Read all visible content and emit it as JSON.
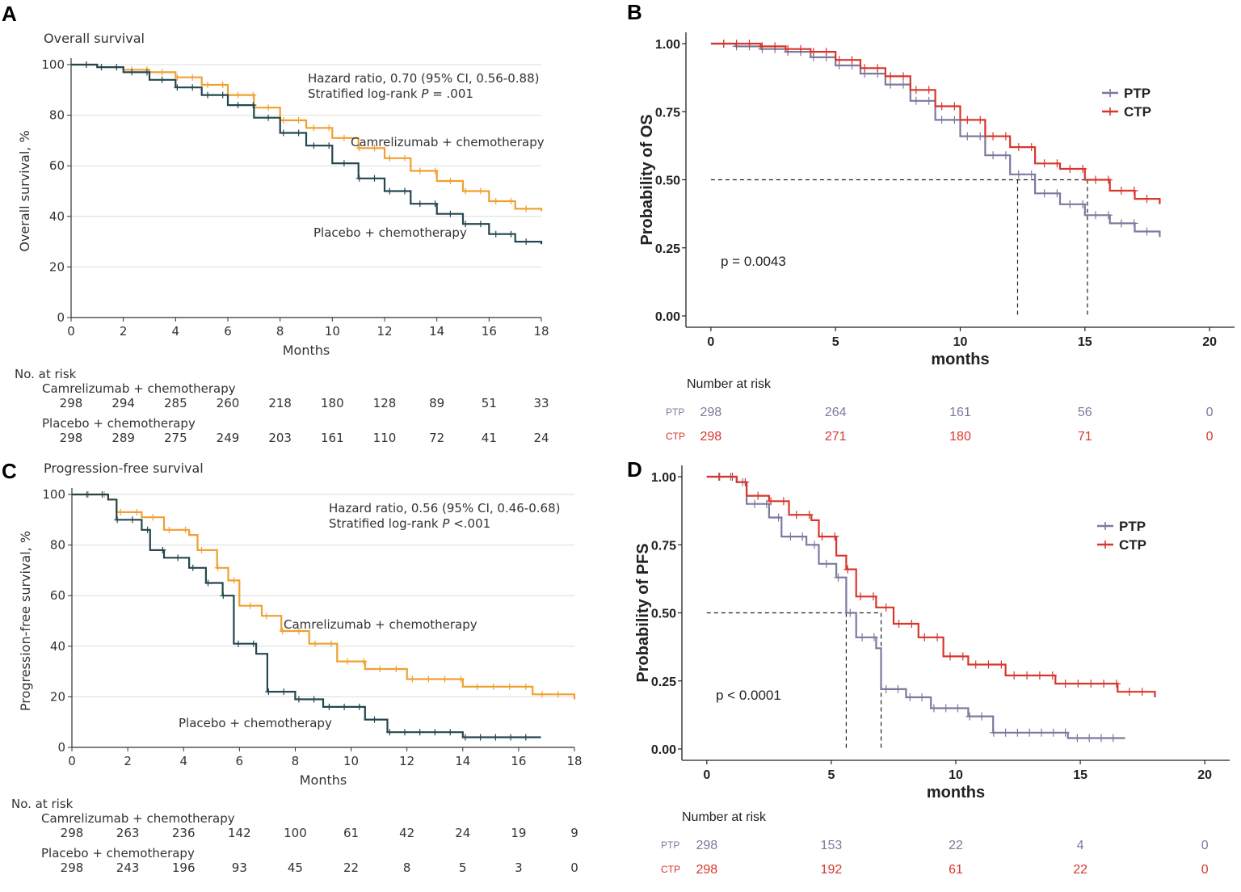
{
  "colors": {
    "camrelizumab": "#f0a030",
    "placebo": "#24474f",
    "ptp": "#7b7a9e",
    "ctp": "#d8362c",
    "grid": "#dddddd",
    "axis": "#333333"
  },
  "chart_data": [
    {
      "id": "A",
      "type": "line",
      "letter": "A",
      "title": "Overall survival",
      "xlabel": "Months",
      "ylabel": "Overall survival, %",
      "xlim": [
        0,
        18
      ],
      "ylim": [
        0,
        100
      ],
      "xticks": [
        0,
        2,
        4,
        6,
        8,
        10,
        12,
        14,
        16,
        18
      ],
      "yticks": [
        0,
        20,
        40,
        60,
        80,
        100
      ],
      "annotation_lines": [
        "Hazard ratio, 0.70 (95% CI, 0.56-0.88)",
        "Stratified log-rank ",
        "P",
        " = .001"
      ],
      "series": [
        {
          "name": "Camrelizumab + chemotherapy",
          "label": "Camrelizumab + chemotherapy",
          "color_key": "camrelizumab",
          "x": [
            0,
            1,
            2,
            3,
            4,
            5,
            6,
            7,
            8,
            9,
            10,
            11,
            12,
            13,
            14,
            15,
            16,
            17,
            18
          ],
          "y": [
            100,
            99,
            98,
            97,
            95,
            92,
            88,
            83,
            78,
            75,
            71,
            67,
            63,
            58,
            54,
            50,
            46,
            43,
            42
          ]
        },
        {
          "name": "Placebo + chemotherapy",
          "label": "Placebo + chemotherapy",
          "color_key": "placebo",
          "x": [
            0,
            1,
            2,
            3,
            4,
            5,
            6,
            7,
            8,
            9,
            10,
            11,
            12,
            13,
            14,
            15,
            16,
            17,
            18
          ],
          "y": [
            100,
            99,
            97,
            94,
            91,
            88,
            84,
            79,
            73,
            68,
            61,
            55,
            50,
            45,
            41,
            37,
            33,
            30,
            29
          ]
        }
      ],
      "risk_table": {
        "title": "No. at risk",
        "rows": [
          {
            "label": "Camrelizumab + chemotherapy",
            "values": [
              "298",
              "294",
              "285",
              "260",
              "218",
              "180",
              "128",
              "89",
              "51",
              "33"
            ]
          },
          {
            "label": "Placebo + chemotherapy",
            "values": [
              "298",
              "289",
              "275",
              "249",
              "203",
              "161",
              "110",
              "72",
              "41",
              "24"
            ]
          }
        ]
      }
    },
    {
      "id": "B",
      "type": "line",
      "letter": "B",
      "xlabel": "months",
      "ylabel": "Probability of OS",
      "xlim": [
        -1,
        21
      ],
      "ylim": [
        0,
        1
      ],
      "xticks": [
        0,
        5,
        10,
        15,
        20
      ],
      "yticks": [
        "0.00",
        "0.25",
        "0.50",
        "0.75",
        "1.00"
      ],
      "p_value": "p = 0.0043",
      "median": [
        12.3,
        15.1
      ],
      "series": [
        {
          "name": "PTP",
          "color_key": "ptp",
          "x": [
            0,
            1,
            2,
            3,
            4,
            5,
            6,
            7,
            8,
            9,
            10,
            11,
            12,
            13,
            14,
            15,
            16,
            17,
            18
          ],
          "y": [
            1.0,
            0.99,
            0.98,
            0.97,
            0.95,
            0.92,
            0.89,
            0.85,
            0.79,
            0.72,
            0.66,
            0.59,
            0.52,
            0.45,
            0.41,
            0.37,
            0.34,
            0.31,
            0.29
          ]
        },
        {
          "name": "CTP",
          "color_key": "ctp",
          "x": [
            0,
            1,
            2,
            3,
            4,
            5,
            6,
            7,
            8,
            9,
            10,
            11,
            12,
            13,
            14,
            15,
            16,
            17,
            18
          ],
          "y": [
            1.0,
            1.0,
            0.99,
            0.98,
            0.97,
            0.94,
            0.91,
            0.88,
            0.83,
            0.77,
            0.72,
            0.66,
            0.62,
            0.56,
            0.54,
            0.5,
            0.46,
            0.43,
            0.41
          ]
        }
      ],
      "risk_table": {
        "title": "Number at risk",
        "rows": [
          {
            "label": "PTP",
            "color_key": "ptp",
            "values": [
              "298",
              "264",
              "161",
              "56",
              "0"
            ]
          },
          {
            "label": "CTP",
            "color_key": "ctp",
            "values": [
              "298",
              "271",
              "180",
              "71",
              "0"
            ]
          }
        ]
      }
    },
    {
      "id": "C",
      "type": "line",
      "letter": "C",
      "title": "Progression-free survival",
      "xlabel": "Months",
      "ylabel": "Progression-free survival, %",
      "xlim": [
        0,
        18
      ],
      "ylim": [
        0,
        100
      ],
      "xticks": [
        0,
        2,
        4,
        6,
        8,
        10,
        12,
        14,
        16,
        18
      ],
      "yticks": [
        0,
        20,
        40,
        60,
        80,
        100
      ],
      "annotation_lines": [
        "Hazard ratio, 0.56 (95% CI, 0.46-0.68)",
        "Stratified log-rank ",
        "P",
        " <.001"
      ],
      "series": [
        {
          "name": "Camrelizumab + chemotherapy",
          "label": "Camrelizumab + chemotherapy",
          "color_key": "camrelizumab",
          "x": [
            0,
            1.3,
            1.6,
            2.5,
            3.3,
            4.2,
            4.5,
            5.2,
            5.6,
            6.0,
            6.8,
            7.5,
            8.5,
            9.5,
            10.5,
            12,
            14,
            16.5,
            18
          ],
          "y": [
            100,
            98,
            93,
            91,
            86,
            84,
            78,
            71,
            66,
            56,
            52,
            46,
            41,
            34,
            31,
            27,
            24,
            21,
            19
          ]
        },
        {
          "name": "Placebo + chemotherapy",
          "label": "Placebo + chemotherapy",
          "color_key": "placebo",
          "x": [
            0,
            1.3,
            1.6,
            2.5,
            2.8,
            3.3,
            4.2,
            4.8,
            5.4,
            5.8,
            6.6,
            7.0,
            8.0,
            9.0,
            10.5,
            11.3,
            12.5,
            14,
            16.8
          ],
          "y": [
            100,
            98,
            90,
            86,
            78,
            75,
            71,
            65,
            60,
            41,
            37,
            22,
            19,
            16,
            11,
            6,
            6,
            4,
            4
          ]
        }
      ],
      "risk_table": {
        "title": "No. at risk",
        "rows": [
          {
            "label": "Camrelizumab + chemotherapy",
            "values": [
              "298",
              "263",
              "236",
              "142",
              "100",
              "61",
              "42",
              "24",
              "19",
              "9"
            ]
          },
          {
            "label": "Placebo + chemotherapy",
            "values": [
              "298",
              "243",
              "196",
              "93",
              "45",
              "22",
              "8",
              "5",
              "3",
              "0"
            ]
          }
        ]
      }
    },
    {
      "id": "D",
      "type": "line",
      "letter": "D",
      "xlabel": "months",
      "ylabel": "Probability of PFS",
      "xlim": [
        -1,
        21
      ],
      "ylim": [
        0,
        1
      ],
      "xticks": [
        0,
        5,
        10,
        15,
        20
      ],
      "yticks": [
        "0.00",
        "0.25",
        "0.50",
        "0.75",
        "1.00"
      ],
      "p_value": "p < 0.0001",
      "median": [
        5.6,
        7.0
      ],
      "series": [
        {
          "name": "PTP",
          "color_key": "ptp",
          "x": [
            0,
            1.2,
            1.6,
            2.5,
            3.0,
            4.0,
            4.5,
            5.2,
            5.6,
            6.0,
            6.8,
            7.0,
            8.0,
            9.0,
            10.5,
            11.5,
            13.5,
            14.5,
            16.8
          ],
          "y": [
            1.0,
            0.98,
            0.9,
            0.85,
            0.78,
            0.75,
            0.68,
            0.63,
            0.5,
            0.41,
            0.37,
            0.22,
            0.19,
            0.15,
            0.12,
            0.06,
            0.06,
            0.04,
            0.04
          ]
        },
        {
          "name": "CTP",
          "color_key": "ctp",
          "x": [
            0,
            1.2,
            1.6,
            2.5,
            3.3,
            4.2,
            4.5,
            5.2,
            5.6,
            6.0,
            6.8,
            7.5,
            8.5,
            9.5,
            10.5,
            12,
            14,
            16.5,
            18
          ],
          "y": [
            1.0,
            0.98,
            0.93,
            0.91,
            0.86,
            0.84,
            0.78,
            0.71,
            0.66,
            0.56,
            0.52,
            0.46,
            0.41,
            0.34,
            0.31,
            0.27,
            0.24,
            0.21,
            0.19
          ]
        }
      ],
      "risk_table": {
        "title": "Number at risk",
        "rows": [
          {
            "label": "PTP",
            "color_key": "ptp",
            "values": [
              "298",
              "153",
              "22",
              "4",
              "0"
            ]
          },
          {
            "label": "CTP",
            "color_key": "ctp",
            "values": [
              "298",
              "192",
              "61",
              "22",
              "0"
            ]
          }
        ]
      }
    }
  ]
}
